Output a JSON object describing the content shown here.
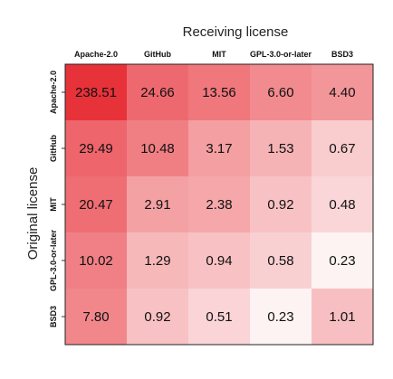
{
  "chart_data": {
    "type": "heatmap",
    "xlabel": "Receiving license",
    "ylabel": "Original license",
    "x_categories": [
      "Apache-2.0",
      "GitHub",
      "MIT",
      "GPL-3.0-or-later",
      "BSD3"
    ],
    "y_categories": [
      "Apache-2.0",
      "GitHub",
      "MIT",
      "GPL-3.0-or-later",
      "BSD3"
    ],
    "values": [
      [
        238.51,
        24.66,
        13.56,
        6.6,
        4.4
      ],
      [
        29.49,
        10.48,
        3.17,
        1.53,
        0.67
      ],
      [
        20.47,
        2.91,
        2.38,
        0.92,
        0.48
      ],
      [
        10.02,
        1.29,
        0.94,
        0.58,
        0.23
      ],
      [
        7.8,
        0.92,
        0.51,
        0.23,
        1.01
      ]
    ],
    "value_labels": [
      [
        "238.51",
        "24.66",
        "13.56",
        "6.60",
        "4.40"
      ],
      [
        "29.49",
        "10.48",
        "3.17",
        "1.53",
        "0.67"
      ],
      [
        "20.47",
        "2.91",
        "2.38",
        "0.92",
        "0.48"
      ],
      [
        "10.02",
        "1.29",
        "0.94",
        "0.58",
        "0.23"
      ],
      [
        "7.80",
        "0.92",
        "0.51",
        "0.23",
        "1.01"
      ]
    ],
    "color_scale": "log",
    "color_low": "#fdf3f3",
    "color_high": "#e8323a",
    "grid": true
  }
}
